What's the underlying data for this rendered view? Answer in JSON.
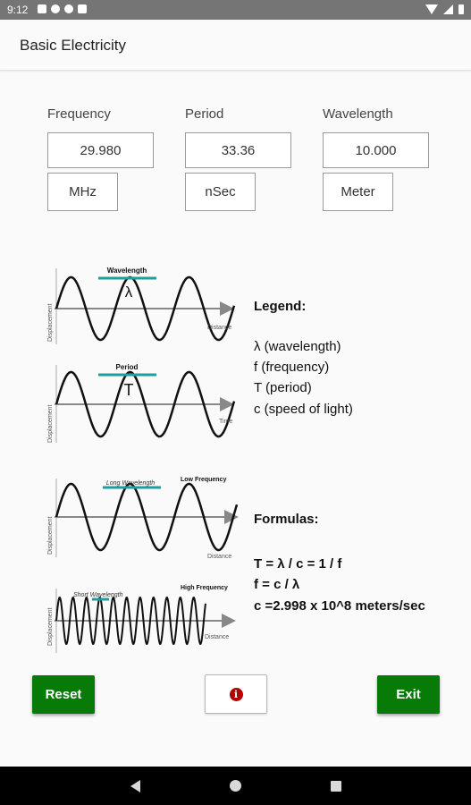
{
  "status_bar": {
    "time": "9:12"
  },
  "app": {
    "title": "Basic Electricity"
  },
  "fields": [
    {
      "label": "Frequency",
      "value": "29.980",
      "unit": "MHz"
    },
    {
      "label": "Period",
      "value": "33.36",
      "unit": "nSec"
    },
    {
      "label": "Wavelength",
      "value": "10.000",
      "unit": "Meter"
    }
  ],
  "diagram": {
    "wave1": {
      "top_label": "Wavelength",
      "symbol": "λ",
      "y_axis": "Displacement",
      "x_axis": "Distance"
    },
    "wave2": {
      "top_label": "Period",
      "symbol": "T",
      "y_axis": "Displacement",
      "x_axis": "Time"
    },
    "wave3": {
      "top_label": "Long Wavelength",
      "freq_label": "Low Frequency",
      "y_axis": "Displacement",
      "x_axis": "Distance"
    },
    "wave4": {
      "top_label": "Short Wavelength",
      "freq_label": "High Frequency",
      "y_axis": "Displacement",
      "x_axis": "Distance"
    },
    "legend": {
      "title": "Legend:",
      "items": [
        "λ (wavelength)",
        "f (frequency)",
        "T (period)",
        "c (speed of light)"
      ]
    },
    "formulas": {
      "title": "Formulas:",
      "items": [
        "T = λ / c = 1 / f",
        "f  = c / λ",
        "c =2.998 x 10^8  meters/sec"
      ]
    }
  },
  "buttons": {
    "reset": "Reset",
    "info": "i",
    "exit": "Exit"
  },
  "colors": {
    "button_green": "#077a07",
    "info_red": "#b00000",
    "highlight_teal": "#1f9e9e"
  }
}
